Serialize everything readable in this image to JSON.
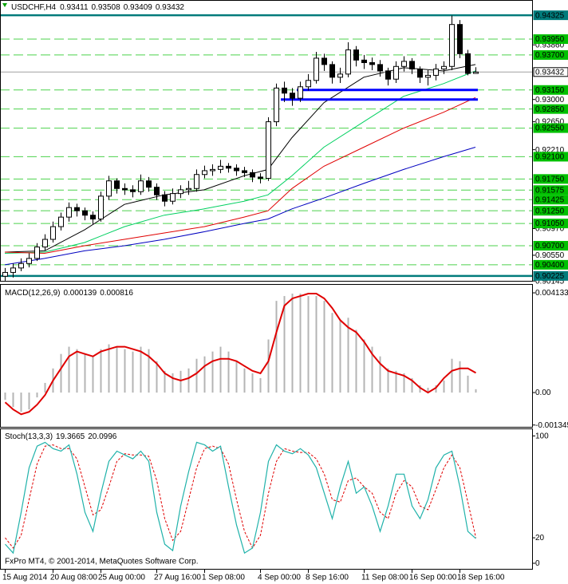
{
  "chart_data": [
    {
      "type": "candlestick",
      "title": "USDCHF,H4",
      "footer": "FxPro MT4, © 2001-2014, MetaQuotes Software Corp.",
      "categories": [
        "15 Aug 2014",
        null,
        null,
        null,
        null,
        null,
        "20 Aug 08:00",
        null,
        null,
        null,
        null,
        null,
        "25 Aug 00:00",
        null,
        null,
        null,
        null,
        null,
        null,
        "27 Aug 16:00",
        null,
        null,
        null,
        null,
        null,
        "1 Sep 08:00",
        null,
        null,
        null,
        null,
        null,
        null,
        "4 Sep 00:00",
        null,
        null,
        null,
        null,
        null,
        "8 Sep 16:00",
        null,
        null,
        null,
        null,
        null,
        null,
        "11 Sep 08:00",
        null,
        null,
        null,
        null,
        null,
        "16 Sep 00:00",
        null,
        null,
        null,
        null,
        null,
        "18 Sep 16:00",
        null,
        null
      ],
      "open": [
        0.9022,
        0.9028,
        0.9035,
        0.9042,
        0.905,
        0.9068,
        0.908,
        0.91,
        0.9115,
        0.913,
        0.9125,
        0.9118,
        0.9112,
        0.9148,
        0.9172,
        0.916,
        0.9158,
        0.9155,
        0.9172,
        0.9162,
        0.915,
        0.914,
        0.9152,
        0.9158,
        0.916,
        0.9182,
        0.9188,
        0.919,
        0.9195,
        0.9192,
        0.9188,
        0.9185,
        0.9178,
        0.9176,
        0.9265,
        0.9318,
        0.931,
        0.9302,
        0.932,
        0.933,
        0.9365,
        0.9355,
        0.9335,
        0.934,
        0.9378,
        0.9362,
        0.9358,
        0.9355,
        0.9345,
        0.9332,
        0.9352,
        0.936,
        0.9348,
        0.9335,
        0.9338,
        0.9348,
        0.9352,
        0.9418,
        0.9372,
        0.93411
      ],
      "high": [
        0.9035,
        0.9042,
        0.905,
        0.9058,
        0.9074,
        0.9088,
        0.9108,
        0.9122,
        0.9138,
        0.9136,
        0.913,
        0.9124,
        0.9155,
        0.918,
        0.9176,
        0.9168,
        0.9165,
        0.9182,
        0.9178,
        0.9168,
        0.9156,
        0.916,
        0.9165,
        0.9172,
        0.919,
        0.9196,
        0.9198,
        0.9205,
        0.92,
        0.9198,
        0.9194,
        0.919,
        0.9184,
        0.9272,
        0.9325,
        0.9328,
        0.9318,
        0.9328,
        0.934,
        0.9375,
        0.9372,
        0.936,
        0.935,
        0.939,
        0.9384,
        0.937,
        0.9366,
        0.9362,
        0.935,
        0.936,
        0.9368,
        0.9365,
        0.9352,
        0.9346,
        0.9356,
        0.936,
        0.9432,
        0.9425,
        0.9378,
        0.93508
      ],
      "low": [
        0.9015,
        0.902,
        0.903,
        0.9036,
        0.9046,
        0.9062,
        0.9075,
        0.9094,
        0.9108,
        0.9116,
        0.911,
        0.9104,
        0.9108,
        0.9142,
        0.9152,
        0.915,
        0.9146,
        0.915,
        0.9155,
        0.9142,
        0.9132,
        0.9135,
        0.9145,
        0.915,
        0.9155,
        0.9176,
        0.918,
        0.9184,
        0.9185,
        0.918,
        0.9178,
        0.917,
        0.9168,
        0.9172,
        0.9258,
        0.9296,
        0.929,
        0.9296,
        0.9314,
        0.9325,
        0.9345,
        0.9325,
        0.9326,
        0.9335,
        0.9352,
        0.9348,
        0.9346,
        0.9336,
        0.9322,
        0.9326,
        0.9344,
        0.934,
        0.9326,
        0.9322,
        0.933,
        0.934,
        0.9346,
        0.9365,
        0.9338,
        0.93409
      ],
      "close": [
        0.9028,
        0.9035,
        0.9042,
        0.905,
        0.9068,
        0.908,
        0.91,
        0.9115,
        0.913,
        0.9125,
        0.9118,
        0.9112,
        0.9148,
        0.9172,
        0.916,
        0.9158,
        0.9155,
        0.9172,
        0.9162,
        0.915,
        0.914,
        0.9152,
        0.9158,
        0.916,
        0.9182,
        0.9188,
        0.919,
        0.9195,
        0.9192,
        0.9188,
        0.9185,
        0.9178,
        0.9176,
        0.9265,
        0.9318,
        0.931,
        0.9302,
        0.932,
        0.933,
        0.9365,
        0.9355,
        0.9335,
        0.934,
        0.9378,
        0.9362,
        0.9358,
        0.9355,
        0.9345,
        0.9332,
        0.9352,
        0.936,
        0.9348,
        0.9335,
        0.9338,
        0.9348,
        0.9352,
        0.9418,
        0.9372,
        0.9341,
        0.93432
      ],
      "up_color": "#ffffff",
      "down_color": "#000000",
      "ylim": [
        0.9011,
        0.9454
      ],
      "yticks": [
        {
          "value": 0.9386,
          "label": "0.93860"
        },
        {
          "value": 0.93,
          "label": "0.93000"
        },
        {
          "value": 0.9265,
          "label": "0.92650"
        },
        {
          "value": 0.9221,
          "label": "0.92210"
        },
        {
          "value": 0.9097,
          "label": "0.90970"
        },
        {
          "value": 0.9055,
          "label": "0.90550"
        },
        0.90145
      ],
      "levels": [
        {
          "value": 0.9395,
          "label": "0.93950"
        },
        {
          "value": 0.937,
          "label": "0.93700"
        },
        {
          "value": 0.9315,
          "label": "0.93150"
        },
        {
          "value": 0.9285,
          "label": "0.92850"
        },
        {
          "value": 0.9255,
          "label": "0.92550"
        },
        {
          "value": 0.921,
          "label": "0.92100"
        },
        {
          "value": 0.9175,
          "label": "0.91750"
        },
        0.91575,
        0.91425,
        {
          "value": 0.9125,
          "label": "0.91250"
        },
        {
          "value": 0.9105,
          "label": "0.91050"
        },
        {
          "value": 0.907,
          "label": "0.90700"
        },
        {
          "value": 0.904,
          "label": "0.90400"
        }
      ],
      "level_color": "#00c000",
      "bounds": [
        0.94325,
        0.90225
      ],
      "bound_color": "#007b7b",
      "support_lines": [
        {
          "value": 0.9315,
          "start": 37
        },
        {
          "value": 0.93,
          "start": 35
        }
      ],
      "support_color": "#0000ff",
      "moving_averages": [
        {
          "color": "#000000",
          "x": [
            0,
            5,
            10,
            15,
            20,
            25,
            30,
            33,
            36,
            40,
            45,
            50,
            55,
            59
          ],
          "values": [
            0.906,
            0.9062,
            0.9095,
            0.9135,
            0.915,
            0.9158,
            0.918,
            0.919,
            0.924,
            0.9295,
            0.9335,
            0.935,
            0.9345,
            0.9355
          ]
        },
        {
          "color": "#00d060",
          "x": [
            0,
            5,
            10,
            15,
            20,
            25,
            30,
            33,
            36,
            40,
            45,
            50,
            55,
            59
          ],
          "values": [
            0.9058,
            0.906,
            0.9075,
            0.91,
            0.9118,
            0.9128,
            0.914,
            0.915,
            0.918,
            0.9225,
            0.9265,
            0.9305,
            0.9325,
            0.9345
          ]
        },
        {
          "color": "#e00000",
          "x": [
            0,
            5,
            10,
            15,
            20,
            25,
            30,
            33,
            36,
            40,
            45,
            50,
            55,
            59
          ],
          "values": [
            0.906,
            0.9058,
            0.907,
            0.908,
            0.909,
            0.91,
            0.9115,
            0.9125,
            0.916,
            0.9195,
            0.9225,
            0.9255,
            0.928,
            0.9303
          ]
        },
        {
          "color": "#0000c0",
          "x": [
            0,
            5,
            10,
            15,
            20,
            25,
            30,
            33,
            36,
            40,
            45,
            50,
            55,
            59
          ],
          "values": [
            0.904,
            0.905,
            0.9062,
            0.907,
            0.908,
            0.9092,
            0.9105,
            0.9112,
            0.9128,
            0.9145,
            0.9168,
            0.919,
            0.921,
            0.9225
          ]
        }
      ]
    },
    {
      "type": "macd",
      "title": "MACD(12,26,9)",
      "histogram": [
        -0.0003,
        -0.0006,
        -0.0008,
        -0.0007,
        -0.0002,
        0.0004,
        0.001,
        0.0016,
        0.0019,
        0.0018,
        0.0016,
        0.0015,
        0.0018,
        0.002,
        0.0019,
        0.0018,
        0.0017,
        0.0019,
        0.0018,
        0.0013,
        0.0009,
        0.0008,
        0.0009,
        0.001,
        0.0014,
        0.0015,
        0.0017,
        0.0019,
        0.0017,
        0.0013,
        0.001,
        0.0008,
        0.0006,
        0.0022,
        0.0038,
        0.004,
        0.0041,
        0.0041,
        0.004,
        0.004,
        0.0038,
        0.0033,
        0.003,
        0.0031,
        0.0026,
        0.0022,
        0.0019,
        0.0015,
        0.001,
        0.0009,
        0.0008,
        0.0006,
        0.0003,
        0.0002,
        0.0003,
        0.0005,
        0.0014,
        0.0013,
        0.0007,
        0.000139
      ],
      "signal": [
        -0.0004,
        -0.0007,
        -0.0009,
        -0.0008,
        -0.0005,
        -0.0001,
        0.0005,
        0.001,
        0.0015,
        0.0017,
        0.0016,
        0.0015,
        0.0017,
        0.0018,
        0.0019,
        0.0019,
        0.0018,
        0.0017,
        0.0015,
        0.0012,
        0.0008,
        0.0006,
        0.0005,
        0.0006,
        0.0008,
        0.0011,
        0.0013,
        0.0014,
        0.0014,
        0.0013,
        0.0011,
        0.0009,
        0.0008,
        0.0013,
        0.0025,
        0.0036,
        0.0039,
        0.004,
        0.0041,
        0.0041,
        0.0039,
        0.0035,
        0.003,
        0.0027,
        0.0025,
        0.0021,
        0.0016,
        0.0012,
        0.0009,
        0.0008,
        0.0007,
        0.0005,
        0.0002,
        0,
        0.0002,
        0.0006,
        0.0009,
        0.001,
        0.001,
        0.000816
      ],
      "histogram_color": "#b4b4b4",
      "signal_color": "#e00000",
      "ylim": [
        -0.00142,
        0.0043
      ],
      "yticks": [
        0.004133,
        {
          "value": 0,
          "label": "0.00"
        },
        -0.001345
      ]
    },
    {
      "type": "stochastic",
      "title": "Stoch(13,3,3)",
      "main": [
        15,
        8,
        40,
        75,
        92,
        95,
        90,
        88,
        93,
        70,
        40,
        25,
        55,
        80,
        88,
        85,
        82,
        88,
        80,
        40,
        15,
        10,
        45,
        72,
        95,
        93,
        88,
        92,
        60,
        30,
        8,
        12,
        40,
        80,
        93,
        88,
        86,
        90,
        85,
        75,
        55,
        35,
        60,
        80,
        55,
        60,
        45,
        25,
        45,
        70,
        70,
        45,
        35,
        50,
        75,
        85,
        88,
        60,
        25,
        19.3665
      ],
      "signal": [
        20,
        12,
        22,
        50,
        78,
        92,
        93,
        90,
        90,
        82,
        60,
        38,
        42,
        60,
        80,
        86,
        85,
        85,
        84,
        65,
        35,
        18,
        25,
        50,
        75,
        90,
        92,
        90,
        78,
        50,
        25,
        12,
        22,
        55,
        80,
        90,
        88,
        87,
        87,
        82,
        70,
        50,
        48,
        65,
        67,
        60,
        55,
        40,
        35,
        55,
        65,
        60,
        45,
        42,
        58,
        75,
        85,
        75,
        48,
        20.0996
      ],
      "main_color": "#20b2aa",
      "signal_color": "#e00000",
      "ylim": [
        -5,
        104
      ],
      "yticks": [
        100,
        20,
        0
      ]
    }
  ]
}
